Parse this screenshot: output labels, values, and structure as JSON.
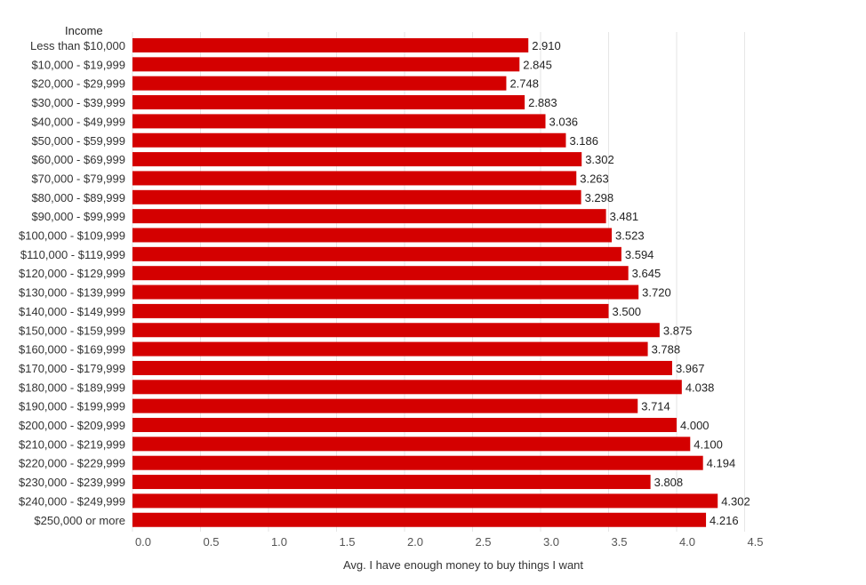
{
  "chart_data": {
    "type": "bar",
    "orientation": "horizontal",
    "row_header": "Income",
    "xlabel": "Avg. I have enough money to buy things I want",
    "ylabel": "",
    "xlim": [
      0,
      4.5
    ],
    "ticks": [
      "0.0",
      "0.5",
      "1.0",
      "1.5",
      "2.0",
      "2.5",
      "3.0",
      "3.5",
      "4.0",
      "4.5"
    ],
    "tick_values": [
      0,
      0.5,
      1.0,
      1.5,
      2.0,
      2.5,
      3.0,
      3.5,
      4.0,
      4.5
    ],
    "grid": true,
    "bar_color": "#d40000",
    "categories": [
      "Less than $10,000",
      "$10,000 - $19,999",
      "$20,000 - $29,999",
      "$30,000 - $39,999",
      "$40,000 - $49,999",
      "$50,000 - $59,999",
      "$60,000 - $69,999",
      "$70,000 - $79,999",
      "$80,000 - $89,999",
      "$90,000 - $99,999",
      "$100,000 - $109,999",
      "$110,000 - $119,999",
      "$120,000 - $129,999",
      "$130,000 - $139,999",
      "$140,000 - $149,999",
      "$150,000 - $159,999",
      "$160,000 - $169,999",
      "$170,000 - $179,999",
      "$180,000 - $189,999",
      "$190,000 - $199,999",
      "$200,000 - $209,999",
      "$210,000 - $219,999",
      "$220,000 - $229,999",
      "$230,000 - $239,999",
      "$240,000 - $249,999",
      "$250,000  or more"
    ],
    "values": [
      2.91,
      2.845,
      2.748,
      2.883,
      3.036,
      3.186,
      3.302,
      3.263,
      3.298,
      3.481,
      3.523,
      3.594,
      3.645,
      3.72,
      3.5,
      3.875,
      3.788,
      3.967,
      4.038,
      3.714,
      4.0,
      4.1,
      4.194,
      3.808,
      4.302,
      4.216
    ],
    "value_labels": [
      "2.910",
      "2.845",
      "2.748",
      "2.883",
      "3.036",
      "3.186",
      "3.302",
      "3.263",
      "3.298",
      "3.481",
      "3.523",
      "3.594",
      "3.645",
      "3.720",
      "3.500",
      "3.875",
      "3.788",
      "3.967",
      "4.038",
      "3.714",
      "4.000",
      "4.100",
      "4.194",
      "3.808",
      "4.302",
      "4.216"
    ]
  }
}
